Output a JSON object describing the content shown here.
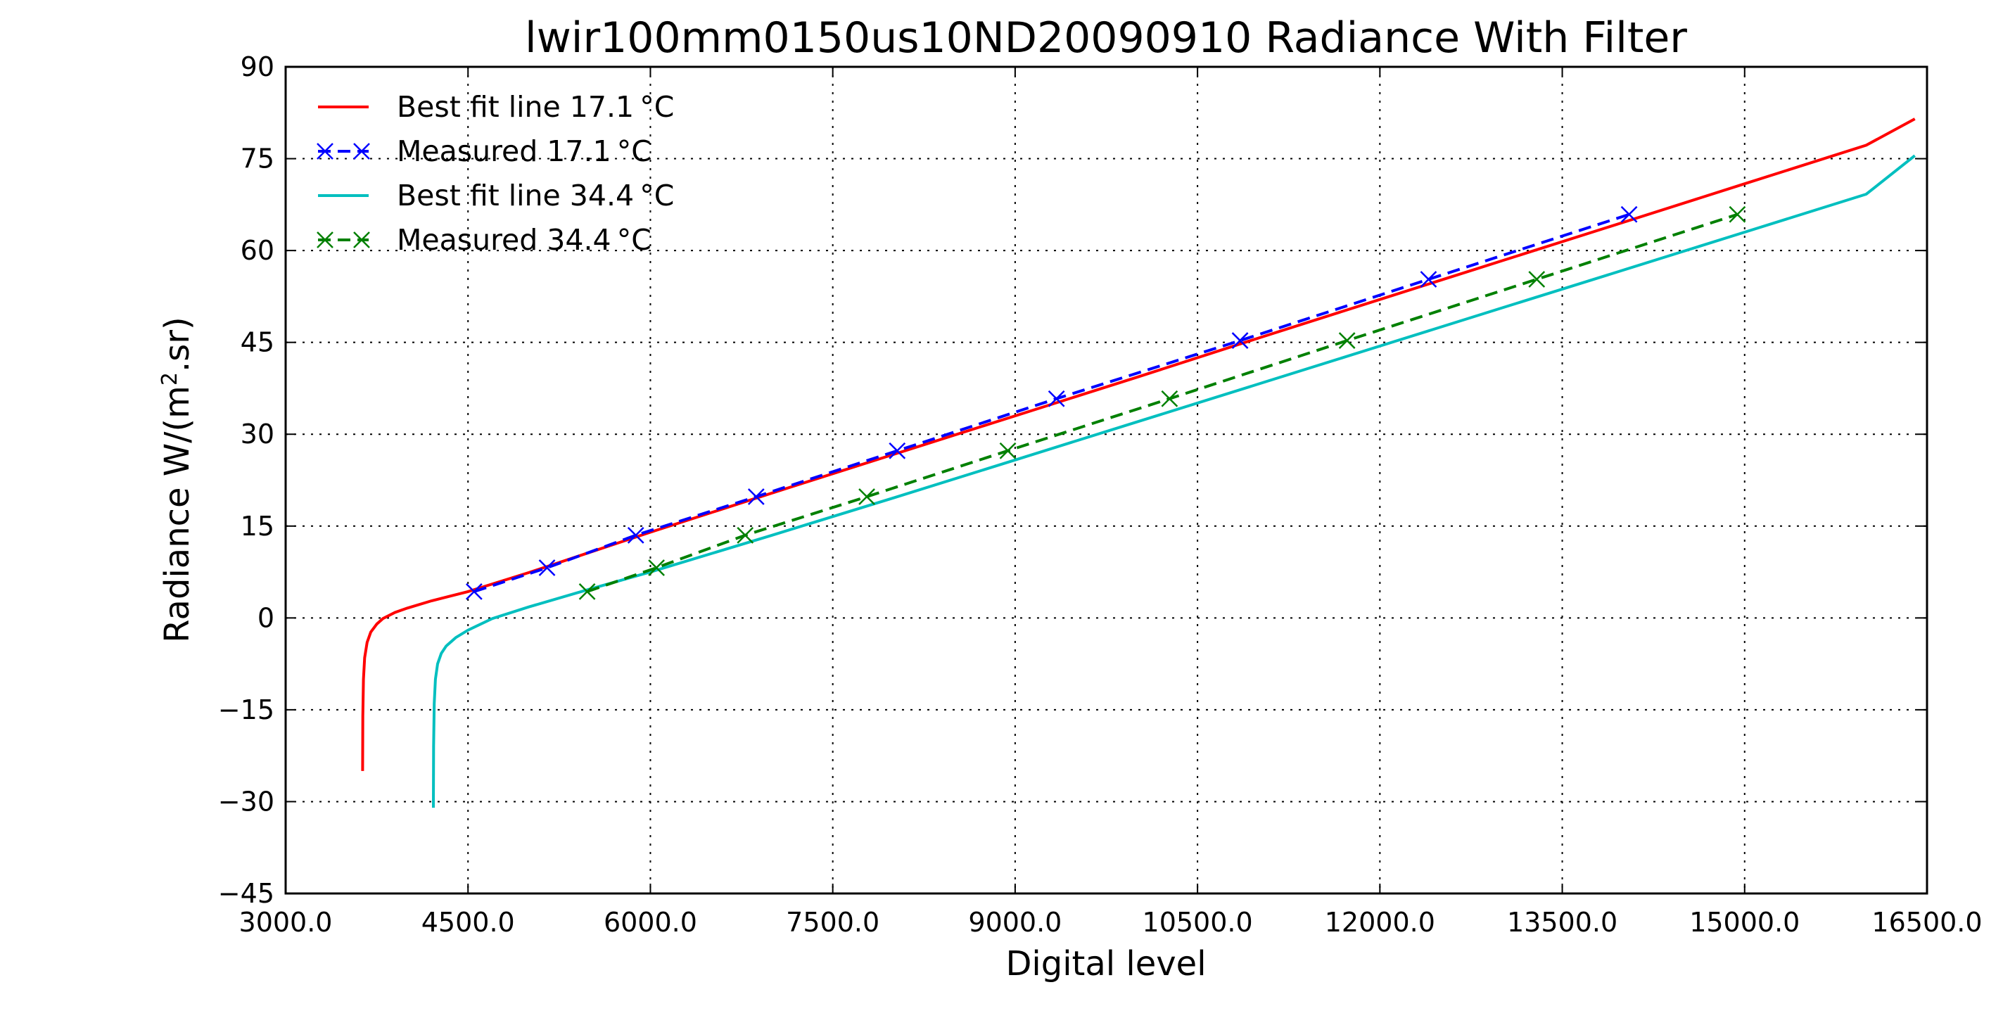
{
  "chart_data": {
    "type": "line",
    "title": "lwir100mm0150us10ND20090910 Radiance With Filter",
    "xlabel": "Digital level",
    "ylabel_main": "Radiance W/(m",
    "ylabel_sup": "2",
    "ylabel_tail": ".sr)",
    "xlim": [
      3000,
      16500
    ],
    "ylim": [
      -45,
      90
    ],
    "xticks": [
      3000,
      4500,
      6000,
      7500,
      9000,
      10500,
      12000,
      13500,
      15000,
      16500
    ],
    "xtick_labels": [
      "3000.0",
      "4500.0",
      "6000.0",
      "7500.0",
      "9000.0",
      "10500.0",
      "12000.0",
      "13500.0",
      "15000.0",
      "16500.0"
    ],
    "yticks": [
      -45,
      -30,
      -15,
      0,
      15,
      30,
      45,
      60,
      75,
      90
    ],
    "ytick_labels": [
      "−45",
      "−30",
      "−15",
      "0",
      "15",
      "30",
      "45",
      "60",
      "75",
      "90"
    ],
    "grid": true,
    "legend_position": "top-left",
    "series": [
      {
        "name": "Best fit line 17.1 °C",
        "kind": "fit",
        "color": "#ff0000",
        "style": "solid",
        "x": [
          3633,
          3635,
          3640,
          3650,
          3670,
          3700,
          3750,
          3800,
          3900,
          4000,
          4200,
          4500,
          5000,
          5500,
          6000,
          7000,
          8000,
          9000,
          10000,
          11000,
          12000,
          13000,
          14000,
          15000,
          16000,
          16400
        ],
        "y": [
          -25,
          -16,
          -10,
          -6.5,
          -4,
          -2.3,
          -1,
          -0.1,
          0.9,
          1.6,
          2.8,
          4.3,
          7.4,
          10.7,
          14,
          20.4,
          26.7,
          33.0,
          39.3,
          45.7,
          52.0,
          58.3,
          64.6,
          70.9,
          77.2,
          81.5
        ]
      },
      {
        "name": "Measured 17.1 °C",
        "kind": "measured",
        "color": "#0000ff",
        "style": "dashed",
        "marker": "x",
        "x": [
          4550,
          5150,
          5880,
          6870,
          8030,
          9340,
          10850,
          12400,
          14050
        ],
        "y": [
          4.3,
          8.2,
          13.5,
          19.8,
          27.3,
          35.8,
          45.3,
          55.3,
          65.9
        ]
      },
      {
        "name": "Best fit line 34.4 °C",
        "kind": "fit",
        "color": "#00bfbf",
        "style": "solid",
        "x": [
          4215,
          4217,
          4222,
          4232,
          4250,
          4280,
          4320,
          4400,
          4500,
          4700,
          5000,
          5500,
          6000,
          7000,
          8000,
          9000,
          10000,
          11000,
          12000,
          13000,
          14000,
          15000,
          16000,
          16400
        ],
        "y": [
          -31,
          -21,
          -14,
          -10,
          -7.5,
          -5.8,
          -4.6,
          -3.2,
          -2,
          -0.1,
          1.8,
          4.7,
          7.5,
          13.5,
          19.6,
          25.8,
          32.0,
          38.2,
          44.4,
          50.6,
          56.8,
          63.0,
          69.2,
          75.5
        ]
      },
      {
        "name": "Measured 34.4 °C",
        "kind": "measured",
        "color": "#008000",
        "style": "dashed",
        "marker": "x",
        "x": [
          5480,
          6050,
          6780,
          7780,
          8940,
          10270,
          11730,
          13290,
          14940
        ],
        "y": [
          4.3,
          8.2,
          13.5,
          19.8,
          27.3,
          35.8,
          45.3,
          55.3,
          65.9
        ]
      }
    ]
  }
}
